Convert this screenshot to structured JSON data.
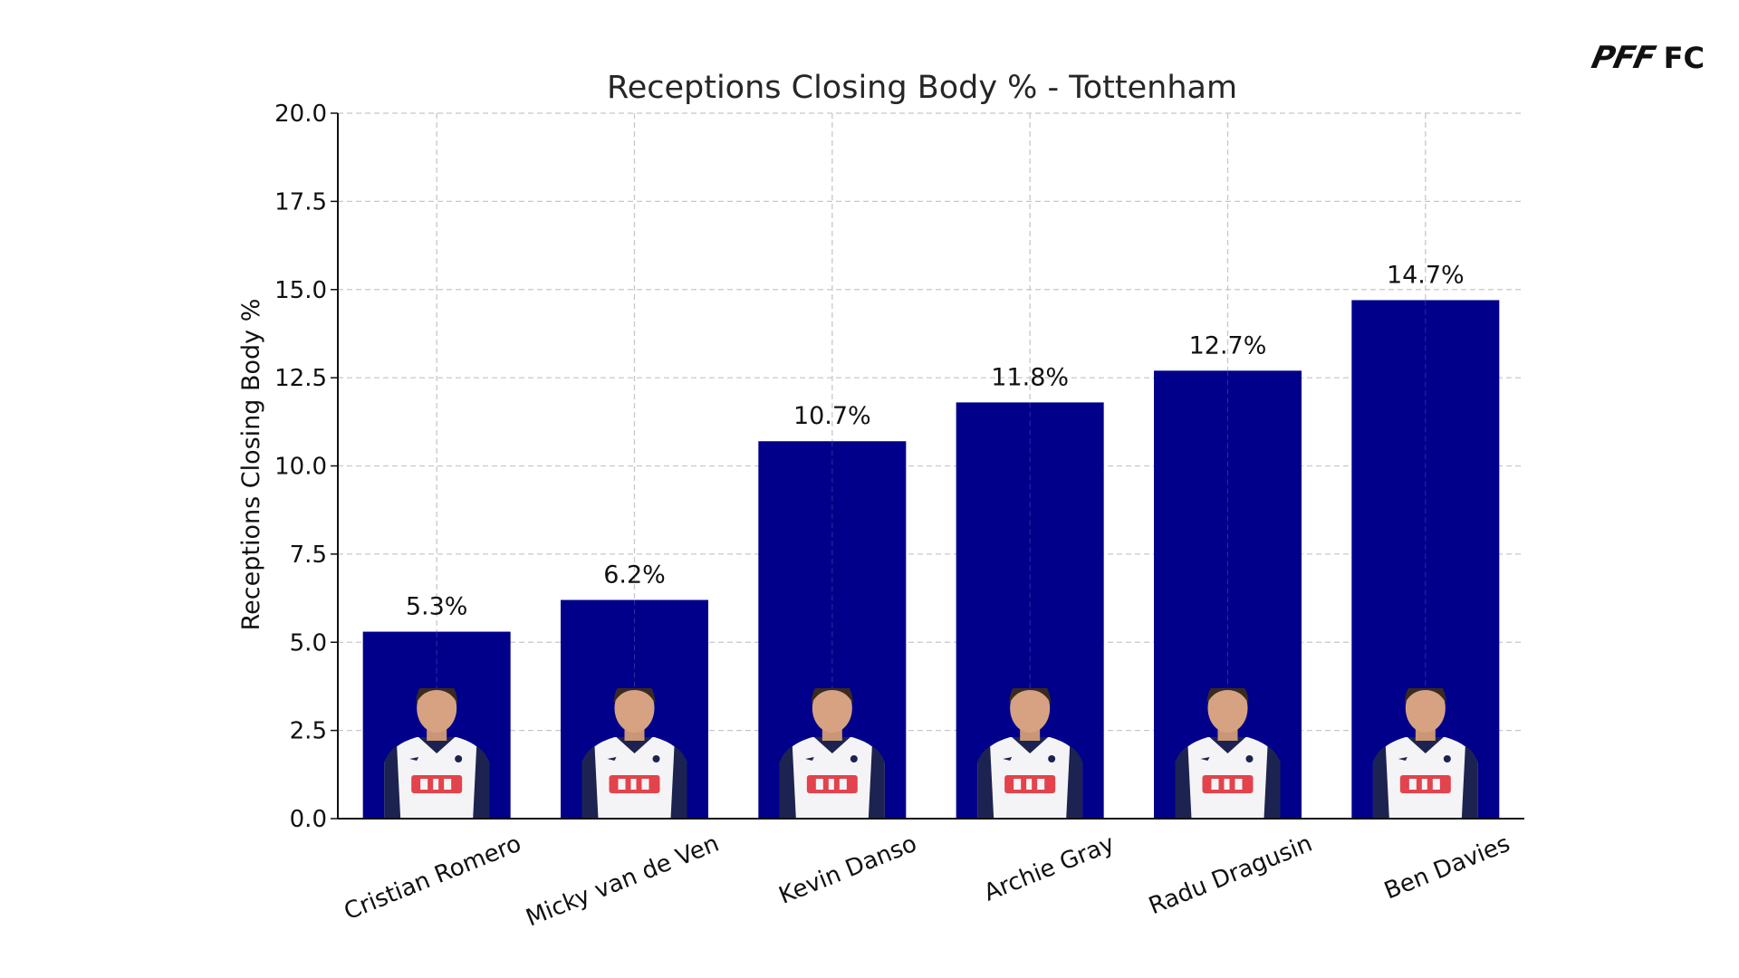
{
  "brand": {
    "logo_mark": "PFF",
    "logo_suffix": "FC"
  },
  "chart_data": {
    "type": "bar",
    "title": "Receptions Closing Body % - Tottenham",
    "xlabel": "",
    "ylabel": "Receptions Closing Body %",
    "ylim": [
      0,
      20
    ],
    "yticks": [
      "0.0",
      "2.5",
      "5.0",
      "7.5",
      "10.0",
      "12.5",
      "15.0",
      "17.5",
      "20.0"
    ],
    "grid": true,
    "categories": [
      "Cristian Romero",
      "Micky van de Ven",
      "Kevin Danso",
      "Archie Gray",
      "Radu Dragusin",
      "Ben Davies"
    ],
    "values": [
      5.3,
      6.2,
      10.7,
      11.8,
      12.7,
      14.7
    ],
    "value_labels": [
      "5.3%",
      "6.2%",
      "10.7%",
      "11.8%",
      "12.7%",
      "14.7%"
    ],
    "bar_color": "#00008b",
    "player_images": "player-photo-icon"
  }
}
